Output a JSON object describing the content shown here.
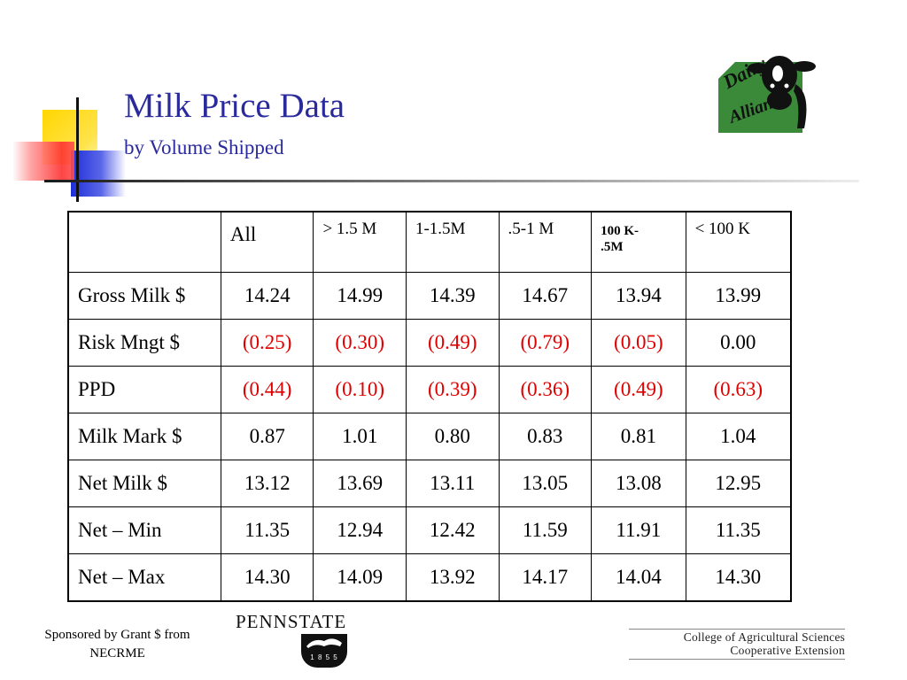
{
  "slide": {
    "title": "Milk Price Data",
    "subtitle": "by Volume Shipped"
  },
  "logo": {
    "text_line1": "Dairy",
    "text_line2": "Alliance"
  },
  "table": {
    "headers": [
      "",
      "All",
      "> 1.5 M",
      "1-1.5M",
      ".5-1 M",
      "100 K-\n.5M",
      "< 100 K"
    ],
    "rows": [
      {
        "label": "Gross Milk $",
        "values": [
          "14.24",
          "14.99",
          "14.39",
          "14.67",
          "13.94",
          "13.99"
        ]
      },
      {
        "label": "Risk Mngt $",
        "values": [
          "(0.25)",
          "(0.30)",
          "(0.49)",
          "(0.79)",
          "(0.05)",
          "0.00"
        ]
      },
      {
        "label": "PPD",
        "values": [
          "(0.44)",
          "(0.10)",
          "(0.39)",
          "(0.36)",
          "(0.49)",
          "(0.63)"
        ]
      },
      {
        "label": "Milk Mark $",
        "values": [
          "0.87",
          "1.01",
          "0.80",
          "0.83",
          "0.81",
          "1.04"
        ]
      },
      {
        "label": "Net Milk $",
        "values": [
          "13.12",
          "13.69",
          "13.11",
          "13.05",
          "13.08",
          "12.95"
        ]
      },
      {
        "label": "Net – Min",
        "values": [
          "11.35",
          "12.94",
          "12.42",
          "11.59",
          "11.91",
          "11.35"
        ]
      },
      {
        "label": "Net – Max",
        "values": [
          "14.30",
          "14.09",
          "13.92",
          "14.17",
          "14.04",
          "14.30"
        ]
      }
    ]
  },
  "footer": {
    "sponsor_line1": "Sponsored by Grant $ from",
    "sponsor_line2": "NECRME",
    "pennstate_wordmark": "PENNSTATE",
    "pennstate_year": "1 8 5 5",
    "college_line1": "College of Agricultural Sciences",
    "college_line2": "Cooperative Extension"
  },
  "colors": {
    "title": "#2a2a9c",
    "negative": "#e00000",
    "logo_green": "#3a8a3a",
    "deco_yellow": "#ffd600",
    "deco_red": "#ff3030",
    "deco_blue": "#1e2ed8"
  },
  "icons": [
    "dairy-alliance-cow-logo",
    "penn-state-lion-shield-logo"
  ]
}
